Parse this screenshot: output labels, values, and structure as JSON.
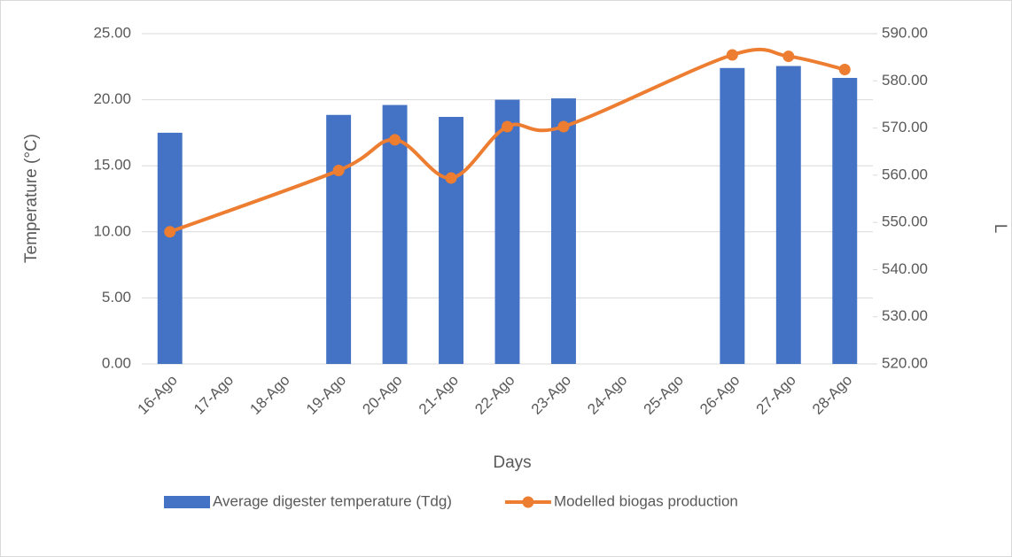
{
  "chart_data": {
    "type": "bar+line",
    "x_label": "Days",
    "y_label": "Temperature (°C)",
    "y2_label": "L",
    "categories": [
      "16-Ago",
      "17-Ago",
      "18-Ago",
      "19-Ago",
      "20-Ago",
      "21-Ago",
      "22-Ago",
      "23-Ago",
      "24-Ago",
      "25-Ago",
      "26-Ago",
      "27-Ago",
      "28-Ago"
    ],
    "series": [
      {
        "name": "Average digester temperature (Tdg)",
        "type": "bar",
        "color": "#4472c4",
        "values": [
          17.5,
          null,
          null,
          18.85,
          19.6,
          18.7,
          20.0,
          20.1,
          null,
          null,
          22.4,
          22.55,
          21.65
        ]
      },
      {
        "name": "Modelled biogas production",
        "type": "line",
        "axis": "y2",
        "color": "#ed7d31",
        "values": [
          548.0,
          null,
          null,
          561.0,
          567.5,
          559.4,
          570.3,
          570.3,
          null,
          null,
          585.5,
          585.2,
          582.4
        ]
      }
    ],
    "ylim": [
      0,
      25
    ],
    "yticks": [
      {
        "value": 0,
        "label": "0.00"
      },
      {
        "value": 5,
        "label": "5.00"
      },
      {
        "value": 10,
        "label": "10.00"
      },
      {
        "value": 15,
        "label": "15.00"
      },
      {
        "value": 20,
        "label": "20.00"
      },
      {
        "value": 25,
        "label": "25.00"
      }
    ],
    "y2lim": [
      520,
      590
    ],
    "y2ticks": [
      {
        "value": 520,
        "label": "520.00"
      },
      {
        "value": 530,
        "label": "530.00"
      },
      {
        "value": 540,
        "label": "540.00"
      },
      {
        "value": 550,
        "label": "550.00"
      },
      {
        "value": 560,
        "label": "560.00"
      },
      {
        "value": 570,
        "label": "570.00"
      },
      {
        "value": 580,
        "label": "580.00"
      },
      {
        "value": 590,
        "label": "590.00"
      }
    ],
    "grid": true,
    "legend": "bottom"
  }
}
